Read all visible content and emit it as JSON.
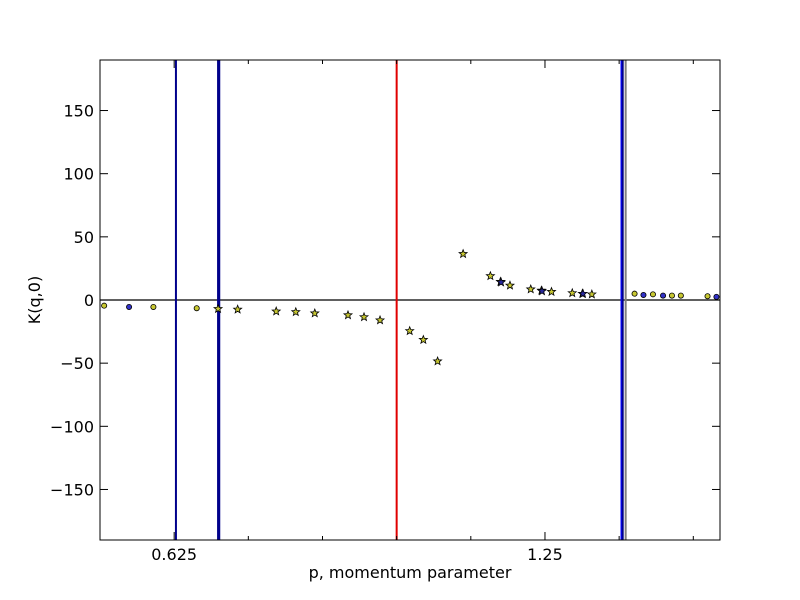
{
  "chart_data": {
    "type": "scatter",
    "title": "",
    "xlabel": "p, momentum parameter",
    "ylabel": "K(q,0)",
    "xlim": [
      0.5,
      1.545
    ],
    "ylim": [
      -190,
      190
    ],
    "x_ticks": [
      {
        "value": 0.625,
        "label": "0.625"
      },
      {
        "value": 1.25,
        "label": "1.25"
      }
    ],
    "x_minor_ticks": [
      0.75,
      0.875,
      1.0,
      1.125,
      1.375,
      1.5
    ],
    "y_ticks": [
      {
        "value": 150,
        "label": "150"
      },
      {
        "value": 100,
        "label": "100"
      },
      {
        "value": 50,
        "label": "50"
      },
      {
        "value": 0,
        "label": "0"
      },
      {
        "value": -50,
        "label": "−50"
      },
      {
        "value": -100,
        "label": "−100"
      },
      {
        "value": -150,
        "label": "−150"
      }
    ],
    "grid": false,
    "horizontal_lines": [
      {
        "y": 0,
        "color": "#000000"
      }
    ],
    "vertical_lines": [
      {
        "x": 0.628,
        "color": "#00008b"
      },
      {
        "x": 0.699,
        "color": "#00008b"
      },
      {
        "x": 0.701,
        "color": "#00008b"
      },
      {
        "x": 1.0,
        "color": "#e00000"
      },
      {
        "x": 1.379,
        "color": "#0000ff"
      },
      {
        "x": 1.381,
        "color": "#00008b"
      },
      {
        "x": 1.386,
        "color": "#808080"
      }
    ],
    "series": [
      {
        "marker": "circle",
        "color": "#c8c832",
        "points": [
          [
            0.507,
            -4.5
          ],
          [
            0.59,
            -5.5
          ],
          [
            0.663,
            -6.5
          ],
          [
            1.401,
            5.0
          ],
          [
            1.432,
            4.5
          ],
          [
            1.464,
            3.5
          ],
          [
            1.479,
            3.5
          ],
          [
            1.524,
            3.0
          ]
        ]
      },
      {
        "marker": "circle",
        "color": "#3232c8",
        "points": [
          [
            0.549,
            -5.5
          ],
          [
            1.416,
            4.0
          ],
          [
            1.449,
            3.5
          ],
          [
            1.539,
            2.5
          ]
        ]
      },
      {
        "marker": "star",
        "color": "#c8c832",
        "points": [
          [
            0.699,
            -7.0
          ],
          [
            0.732,
            -7.5
          ],
          [
            0.797,
            -9.0
          ],
          [
            0.83,
            -9.5
          ],
          [
            0.862,
            -10.5
          ],
          [
            0.918,
            -12.0
          ],
          [
            0.945,
            -13.5
          ],
          [
            0.972,
            -16.0
          ],
          [
            1.022,
            -24.5
          ],
          [
            1.045,
            -31.5
          ],
          [
            1.069,
            -48.5
          ],
          [
            1.112,
            36.5
          ],
          [
            1.158,
            19.0
          ],
          [
            1.175,
            14.5
          ],
          [
            1.191,
            11.5
          ],
          [
            1.226,
            8.5
          ],
          [
            1.244,
            7.5
          ],
          [
            1.261,
            6.5
          ],
          [
            1.296,
            5.5
          ],
          [
            1.313,
            5.0
          ],
          [
            1.329,
            4.5
          ]
        ]
      },
      {
        "marker": "star",
        "color": "#2828a0",
        "points": [
          [
            1.176,
            14.0
          ],
          [
            1.245,
            7.0
          ],
          [
            1.314,
            5.0
          ]
        ]
      }
    ]
  }
}
